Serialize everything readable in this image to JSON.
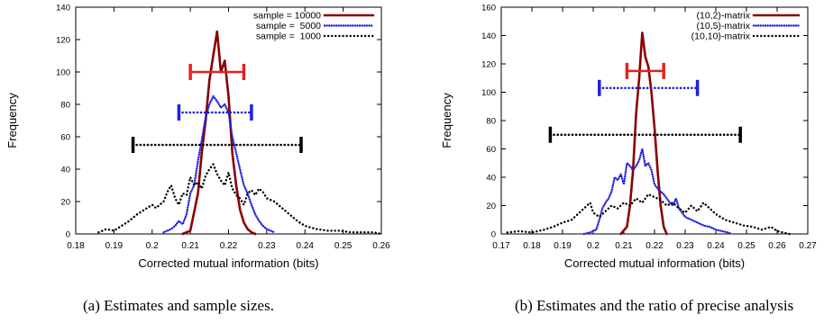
{
  "captions": {
    "a": "(a) Estimates and sample sizes.",
    "b": "(b) Estimates and the ratio of precise analysis"
  },
  "chart_data": [
    {
      "type": "line",
      "title": "",
      "xlabel": "Corrected mutual information (bits)",
      "ylabel": "Frequency",
      "xlim": [
        0.18,
        0.26
      ],
      "ylim": [
        0,
        140
      ],
      "xticks": [
        0.18,
        0.19,
        0.2,
        0.21,
        0.22,
        0.23,
        0.24,
        0.25,
        0.26
      ],
      "xtick_labels": [
        "0.18",
        "0.19",
        "0.2",
        "0.21",
        "0.22",
        "0.23",
        "0.24",
        "0.25",
        "0.26"
      ],
      "yticks": [
        0,
        20,
        40,
        60,
        80,
        100,
        120,
        140
      ],
      "ytick_labels": [
        "0",
        "20",
        "40",
        "60",
        "80",
        "100",
        "120",
        "140"
      ],
      "grid": false,
      "legend_position": "top-right",
      "series": [
        {
          "name": "sample = 10000",
          "color": "#8b0000",
          "style": "solid",
          "x": [
            0.208,
            0.21,
            0.212,
            0.213,
            0.214,
            0.215,
            0.216,
            0.217,
            0.218,
            0.219,
            0.22,
            0.221,
            0.222,
            0.223,
            0.224,
            0.225,
            0.226,
            0.227
          ],
          "y": [
            0,
            2,
            25,
            50,
            70,
            95,
            110,
            125,
            100,
            107,
            85,
            50,
            30,
            15,
            7,
            3,
            1,
            0
          ]
        },
        {
          "name": "sample =  5000",
          "color": "#1f1fdd",
          "style": "dotted",
          "x": [
            0.203,
            0.205,
            0.206,
            0.207,
            0.208,
            0.209,
            0.21,
            0.211,
            0.212,
            0.213,
            0.214,
            0.215,
            0.216,
            0.217,
            0.218,
            0.219,
            0.22,
            0.221,
            0.222,
            0.223,
            0.224,
            0.225,
            0.226,
            0.227,
            0.228,
            0.229,
            0.23,
            0.231,
            0.232
          ],
          "y": [
            1,
            3,
            5,
            8,
            6,
            12,
            25,
            30,
            45,
            58,
            72,
            80,
            85,
            82,
            78,
            80,
            75,
            60,
            50,
            40,
            30,
            25,
            18,
            12,
            8,
            5,
            3,
            2,
            1
          ]
        },
        {
          "name": "sample =  1000",
          "color": "#000000",
          "style": "dotted",
          "x": [
            0.186,
            0.188,
            0.19,
            0.192,
            0.194,
            0.196,
            0.198,
            0.2,
            0.201,
            0.202,
            0.203,
            0.204,
            0.205,
            0.206,
            0.207,
            0.208,
            0.209,
            0.21,
            0.211,
            0.212,
            0.213,
            0.214,
            0.215,
            0.216,
            0.217,
            0.218,
            0.219,
            0.22,
            0.221,
            0.222,
            0.223,
            0.224,
            0.225,
            0.226,
            0.227,
            0.228,
            0.229,
            0.23,
            0.232,
            0.234,
            0.236,
            0.238,
            0.24,
            0.243,
            0.246,
            0.249,
            0.252,
            0.255,
            0.258,
            0.26
          ],
          "y": [
            1,
            3,
            2,
            5,
            8,
            12,
            15,
            18,
            16,
            18,
            20,
            26,
            30,
            22,
            18,
            25,
            24,
            35,
            30,
            32,
            28,
            36,
            40,
            43,
            37,
            33,
            30,
            38,
            28,
            24,
            22,
            18,
            25,
            27,
            24,
            28,
            26,
            22,
            20,
            16,
            12,
            8,
            5,
            3,
            2,
            2,
            1,
            1,
            1,
            0
          ]
        }
      ],
      "error_bars": [
        {
          "series": "sample = 10000",
          "color": "#e82020",
          "y": 100,
          "xmin": 0.21,
          "xmax": 0.224
        },
        {
          "series": "sample =  5000",
          "color": "#1f1fdd",
          "y": 75,
          "xmin": 0.207,
          "xmax": 0.226,
          "dotted": true
        },
        {
          "series": "sample =  1000",
          "color": "#000000",
          "y": 55,
          "xmin": 0.195,
          "xmax": 0.239,
          "dotted": true
        }
      ]
    },
    {
      "type": "line",
      "title": "",
      "xlabel": "Corrected mutual information (bits)",
      "ylabel": "Frequency",
      "xlim": [
        0.17,
        0.27
      ],
      "ylim": [
        0,
        160
      ],
      "xticks": [
        0.17,
        0.18,
        0.19,
        0.2,
        0.21,
        0.22,
        0.23,
        0.24,
        0.25,
        0.26,
        0.27
      ],
      "xtick_labels": [
        "0.17",
        "0.18",
        "0.19",
        "0.2",
        "0.21",
        "0.22",
        "0.23",
        "0.24",
        "0.25",
        "0.26",
        "0.27"
      ],
      "yticks": [
        0,
        20,
        40,
        60,
        80,
        100,
        120,
        140,
        160
      ],
      "ytick_labels": [
        "0",
        "20",
        "40",
        "60",
        "80",
        "100",
        "120",
        "140",
        "160"
      ],
      "grid": false,
      "legend_position": "top-right",
      "series": [
        {
          "name": "(10,2)-matrix",
          "color": "#8b0000",
          "style": "solid",
          "x": [
            0.209,
            0.211,
            0.212,
            0.213,
            0.214,
            0.215,
            0.216,
            0.217,
            0.218,
            0.219,
            0.22,
            0.221,
            0.222,
            0.223,
            0.224
          ],
          "y": [
            0,
            5,
            20,
            45,
            85,
            110,
            142,
            125,
            118,
            100,
            75,
            45,
            20,
            5,
            0
          ]
        },
        {
          "name": "(10,5)-matrix",
          "color": "#1f1fdd",
          "style": "dotted",
          "x": [
            0.197,
            0.199,
            0.201,
            0.202,
            0.203,
            0.204,
            0.205,
            0.206,
            0.207,
            0.208,
            0.209,
            0.21,
            0.211,
            0.212,
            0.213,
            0.214,
            0.215,
            0.216,
            0.217,
            0.218,
            0.219,
            0.22,
            0.221,
            0.222,
            0.223,
            0.224,
            0.225,
            0.226,
            0.227,
            0.228,
            0.229,
            0.23,
            0.232,
            0.234,
            0.236,
            0.238,
            0.24,
            0.242,
            0.244,
            0.245
          ],
          "y": [
            0,
            1,
            3,
            10,
            18,
            22,
            25,
            30,
            40,
            38,
            42,
            35,
            50,
            48,
            45,
            48,
            52,
            60,
            48,
            50,
            45,
            35,
            32,
            30,
            28,
            25,
            22,
            20,
            25,
            18,
            15,
            12,
            10,
            8,
            6,
            5,
            3,
            2,
            1,
            0
          ]
        },
        {
          "name": "(10,10)-matrix",
          "color": "#000000",
          "style": "dotted",
          "x": [
            0.172,
            0.176,
            0.18,
            0.184,
            0.187,
            0.19,
            0.193,
            0.195,
            0.197,
            0.199,
            0.2,
            0.202,
            0.204,
            0.206,
            0.208,
            0.21,
            0.212,
            0.214,
            0.216,
            0.218,
            0.22,
            0.222,
            0.224,
            0.226,
            0.228,
            0.23,
            0.232,
            0.234,
            0.236,
            0.238,
            0.24,
            0.243,
            0.246,
            0.249,
            0.252,
            0.255,
            0.258,
            0.26,
            0.262,
            0.264
          ],
          "y": [
            1,
            2,
            1,
            3,
            5,
            8,
            10,
            14,
            18,
            22,
            15,
            12,
            16,
            20,
            18,
            22,
            20,
            25,
            22,
            28,
            26,
            24,
            20,
            22,
            18,
            15,
            20,
            16,
            22,
            18,
            14,
            10,
            8,
            6,
            5,
            3,
            5,
            2,
            1,
            0
          ]
        }
      ],
      "error_bars": [
        {
          "series": "(10,2)-matrix",
          "color": "#e82020",
          "y": 115,
          "xmin": 0.211,
          "xmax": 0.223
        },
        {
          "series": "(10,5)-matrix",
          "color": "#1f1fdd",
          "y": 103,
          "xmin": 0.202,
          "xmax": 0.234,
          "dotted": true
        },
        {
          "series": "(10,10)-matrix",
          "color": "#000000",
          "y": 70,
          "xmin": 0.186,
          "xmax": 0.248,
          "dotted": true
        }
      ]
    }
  ]
}
